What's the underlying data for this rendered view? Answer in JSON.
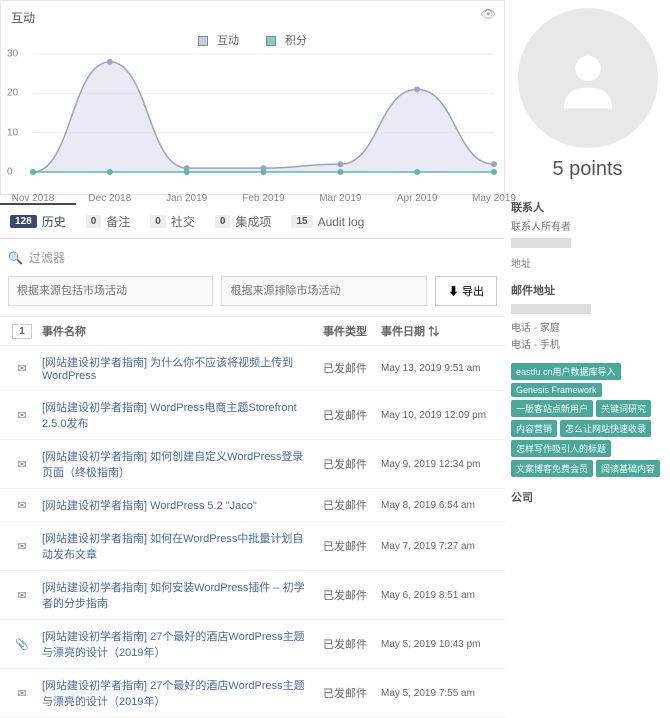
{
  "chart": {
    "title": "互动",
    "legend": [
      {
        "label": "互动",
        "color": "#c8cce0"
      },
      {
        "label": "积分",
        "color": "#7fd0c0"
      }
    ],
    "ylim": [
      0,
      30
    ],
    "ytick_step": 10,
    "yticks": [
      0,
      10,
      20,
      30
    ],
    "xticks": [
      "Nov 2018",
      "Dec 2018",
      "Jan 2019",
      "Feb 2019",
      "Mar 2019",
      "Apr 2019",
      "May 2019"
    ],
    "series": [
      {
        "name": "互动",
        "type": "area",
        "color_line": "#9aa3c7",
        "color_fill": "#dfe1ee",
        "fill_opacity": 0.7,
        "values": [
          0,
          28,
          1,
          1,
          2,
          21,
          2
        ],
        "marker": "circle",
        "marker_size": 3
      },
      {
        "name": "积分",
        "type": "area",
        "color_line": "#5fb8a6",
        "color_fill": "#5fb8a6",
        "fill_opacity": 0.3,
        "values": [
          0,
          0,
          0,
          0,
          0,
          0,
          0
        ],
        "marker": "circle",
        "marker_size": 3
      }
    ],
    "grid_color": "#eeeeee",
    "background_color": "#ffffff"
  },
  "tabs": [
    {
      "count": "128",
      "label": "历史",
      "active": true
    },
    {
      "count": "0",
      "label": "备注"
    },
    {
      "count": "0",
      "label": "社交"
    },
    {
      "count": "0",
      "label": "集成项"
    },
    {
      "count": "15",
      "label": "Audit log"
    }
  ],
  "filters": {
    "search_placeholder": "过滤器",
    "include_placeholder": "根据来源包括市场活动",
    "exclude_placeholder": "根据来源排除市场活动",
    "export_label": "导出"
  },
  "table": {
    "page_indicator": "1",
    "columns": {
      "name": "事件名称",
      "type": "事件类型",
      "date": "事件日期"
    },
    "sort_icon": "↓↑",
    "rows": [
      {
        "icon": "mail",
        "name": "[网站建设初学者指南] 为什么你不应该将视频上传到WordPress",
        "type": "已发邮件",
        "date": "May 13, 2019 9:51 am"
      },
      {
        "icon": "mail",
        "name": "[网站建设初学者指南] WordPress电商主题Storefront 2.5.0发布",
        "type": "已发邮件",
        "date": "May 10, 2019 12:09 pm"
      },
      {
        "icon": "mail",
        "name": "[网站建设初学者指南] 如何创建自定义WordPress登录页面（终极指南）",
        "type": "已发邮件",
        "date": "May 9, 2019 12:34 pm"
      },
      {
        "icon": "mail",
        "name": "[网站建设初学者指南] WordPress 5.2 \"Jaco\"",
        "type": "已发邮件",
        "date": "May 8, 2019 6:54 am"
      },
      {
        "icon": "mail",
        "name": "[网站建设初学者指南] 如何在WordPress中批量计划自动发布文章",
        "type": "已发邮件",
        "date": "May 7, 2019 7:27 am"
      },
      {
        "icon": "mail",
        "name": "[网站建设初学者指南] 如何安装WordPress插件 – 初学者的分步指南",
        "type": "已发邮件",
        "date": "May 6, 2019 8:51 am"
      },
      {
        "icon": "clip",
        "name": "[网站建设初学者指南] 27个最好的酒店WordPress主题与漂亮的设计（2019年）",
        "type": "已发邮件",
        "date": "May 5, 2019 10:43 pm"
      },
      {
        "icon": "mail",
        "name": "[网站建设初学者指南] 27个最好的酒店WordPress主题与漂亮的设计（2019年）",
        "type": "已发邮件",
        "date": "May 5, 2019 7:55 am"
      }
    ]
  },
  "sidebar": {
    "points_label": "5 points",
    "contact_heading": "联系人",
    "owner_label": "联系人所有者",
    "address_label": "地址",
    "email_label": "邮件地址",
    "phone_home_label": "电话 - 家庭",
    "phone_mobile_label": "电话 - 手机",
    "tags": [
      "eastfu.cn用户数据库导入",
      "Genesis Framework",
      "一版客站点新用户",
      "关键词研究",
      "内容营销",
      "怎么让网站快速收录",
      "怎样写作吸引人的标题",
      "文案博客免费会员",
      "阅读基础内容"
    ],
    "company_label": "公司"
  }
}
